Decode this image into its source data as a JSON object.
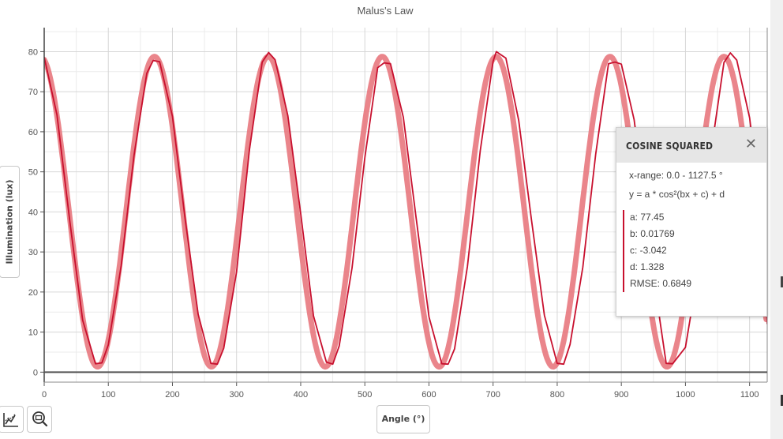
{
  "chart_data": {
    "type": "line",
    "title": "Malus's Law",
    "xlabel": "Angle (°)",
    "ylabel": "Illumination (lux)",
    "xlim": [
      0,
      1127.5
    ],
    "ylim": [
      -2.5,
      86
    ],
    "x_ticks": [
      0,
      100,
      200,
      300,
      400,
      500,
      600,
      700,
      800,
      900,
      1000,
      1100
    ],
    "y_ticks": [
      0,
      10,
      20,
      30,
      40,
      50,
      60,
      70,
      80
    ],
    "grid": true,
    "series": [
      {
        "role": "measured",
        "color": "#c8102e",
        "x": [
          0,
          20,
          40,
          60,
          80,
          90,
          100,
          120,
          140,
          160,
          170,
          180,
          200,
          220,
          240,
          260,
          270,
          280,
          300,
          320,
          340,
          350,
          360,
          380,
          400,
          420,
          440,
          450,
          460,
          480,
          500,
          520,
          530,
          540,
          560,
          580,
          600,
          620,
          630,
          640,
          660,
          680,
          700,
          705,
          720,
          740,
          760,
          780,
          800,
          810,
          820,
          840,
          860,
          880,
          890,
          900,
          920,
          940,
          960,
          970,
          980,
          1000,
          1020,
          1040,
          1060,
          1070,
          1080,
          1100,
          1120,
          1127.5
        ],
        "y": [
          78.6,
          64.2,
          37.6,
          13.0,
          2.1,
          2.3,
          6.8,
          26.5,
          54.0,
          74.6,
          77.8,
          77.5,
          63.8,
          38.0,
          14.5,
          2.2,
          2.0,
          6.0,
          25.0,
          55.5,
          77.4,
          79.8,
          78.0,
          64.0,
          39.5,
          14.0,
          2.5,
          2.0,
          6.5,
          26.0,
          53.5,
          76.0,
          77.2,
          77.0,
          63.6,
          38.5,
          13.8,
          2.1,
          2.0,
          5.8,
          26.4,
          55.2,
          77.6,
          80.0,
          78.4,
          62.8,
          37.9,
          14.2,
          2.2,
          2.0,
          6.9,
          26.2,
          54.4,
          77.0,
          77.4,
          76.9,
          63.0,
          38.2,
          13.1,
          2.2,
          2.1,
          6.2,
          25.6,
          55.0,
          77.3,
          79.7,
          77.9,
          63.5,
          37.6,
          12.0
        ]
      },
      {
        "role": "fit",
        "color": "#e8787e",
        "function": "cosine_squared",
        "params": {
          "a": 77.45,
          "b": 0.01769,
          "c": -3.042,
          "d": 1.328
        },
        "x_range": [
          0,
          1127.5
        ]
      }
    ]
  },
  "panel": {
    "title": "COSINE SQUARED",
    "close_icon": "close-icon",
    "x_range": "x-range: 0.0 - 1127.5 °",
    "equation": "y = a * cos²(bx + c) + d",
    "param_a": "a: 77.45",
    "param_b": "b: 0.01769",
    "param_c": "c: -3.042",
    "param_d": "d: 1.328",
    "rmse": "RMSE: 0.6849"
  },
  "toolbar": {
    "graph_tools_icon": "line-chart-icon",
    "zoom_icon": "zoom-icon"
  },
  "colors": {
    "measured": "#c8102e",
    "fit": "#e8787e",
    "grid": "#d6d6d6",
    "axis": "#555555"
  }
}
